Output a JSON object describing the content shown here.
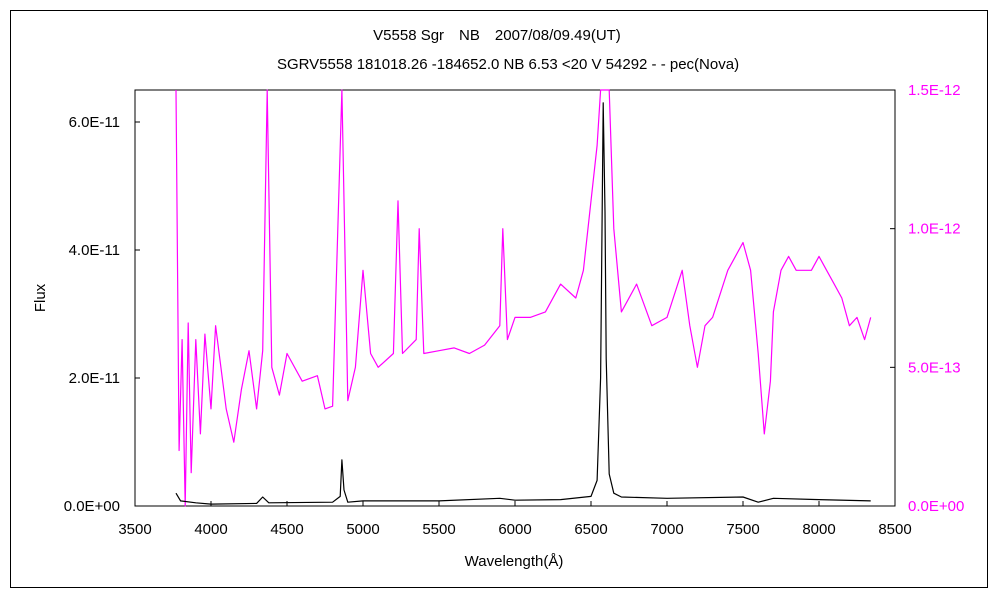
{
  "chart_data": {
    "type": "line",
    "title": "V5558 Sgr　NB　2007/08/09.49(UT)",
    "subtitle": "SGRV5558 181018.26 -184652.0 NB 6.53 <20 V 54292 - - pec(Nova)",
    "xlabel": "Wavelength(Å)",
    "ylabel": "Flux",
    "xlim": [
      3500,
      8500
    ],
    "ylim_left": [
      0,
      6.5e-11
    ],
    "ylim_right": [
      0,
      1.5e-12
    ],
    "x_ticks": [
      "3500",
      "4000",
      "4500",
      "5000",
      "5500",
      "6000",
      "6500",
      "7000",
      "7500",
      "8000",
      "8500"
    ],
    "y_ticks_left": [
      "0.0E+00",
      "2.0E-11",
      "4.0E-11",
      "6.0E-11"
    ],
    "y_ticks_right": [
      "0.0E+00",
      "5.0E-13",
      "1.0E-12",
      "1.5E-12"
    ],
    "grid": false,
    "series": [
      {
        "axis": "left",
        "color": "#000000",
        "points": [
          [
            3770,
            2e-12
          ],
          [
            3800,
            8e-13
          ],
          [
            3900,
            5e-13
          ],
          [
            4000,
            3e-13
          ],
          [
            4300,
            4e-13
          ],
          [
            4340,
            1.4e-12
          ],
          [
            4380,
            5e-13
          ],
          [
            4800,
            6e-13
          ],
          [
            4850,
            1.5e-12
          ],
          [
            4861,
            7.2e-12
          ],
          [
            4875,
            2.5e-12
          ],
          [
            4900,
            6e-13
          ],
          [
            5000,
            8e-13
          ],
          [
            5500,
            8e-13
          ],
          [
            5900,
            1.2e-12
          ],
          [
            6000,
            9e-13
          ],
          [
            6300,
            1e-12
          ],
          [
            6500,
            1.5e-12
          ],
          [
            6540,
            4e-12
          ],
          [
            6563,
            2e-11
          ],
          [
            6580,
            6.3e-11
          ],
          [
            6592,
            4.6e-11
          ],
          [
            6600,
            2.3e-11
          ],
          [
            6620,
            5e-12
          ],
          [
            6650,
            2e-12
          ],
          [
            6700,
            1.4e-12
          ],
          [
            7000,
            1.2e-12
          ],
          [
            7500,
            1.4e-12
          ],
          [
            7600,
            6e-13
          ],
          [
            7700,
            1.2e-12
          ],
          [
            8000,
            1e-12
          ],
          [
            8340,
            8e-13
          ]
        ]
      },
      {
        "axis": "right",
        "color": "#ff00ff",
        "points": [
          [
            3770,
            1.5e-12
          ],
          [
            3790,
            2e-13
          ],
          [
            3810,
            6e-13
          ],
          [
            3830,
            0
          ],
          [
            3850,
            6.6e-13
          ],
          [
            3870,
            1.2e-13
          ],
          [
            3900,
            6e-13
          ],
          [
            3930,
            2.6e-13
          ],
          [
            3960,
            6.2e-13
          ],
          [
            4000,
            3.5e-13
          ],
          [
            4030,
            6.5e-13
          ],
          [
            4100,
            3.5e-13
          ],
          [
            4150,
            2.3e-13
          ],
          [
            4200,
            4.2e-13
          ],
          [
            4250,
            5.6e-13
          ],
          [
            4300,
            3.5e-13
          ],
          [
            4340,
            5.6e-13
          ],
          [
            4370,
            1.5e-12
          ],
          [
            4400,
            5e-13
          ],
          [
            4450,
            4e-13
          ],
          [
            4500,
            5.5e-13
          ],
          [
            4600,
            4.5e-13
          ],
          [
            4700,
            4.7e-13
          ],
          [
            4750,
            3.5e-13
          ],
          [
            4800,
            3.6e-13
          ],
          [
            4861,
            1.5e-12
          ],
          [
            4900,
            3.8e-13
          ],
          [
            4950,
            5e-13
          ],
          [
            5000,
            8.5e-13
          ],
          [
            5050,
            5.5e-13
          ],
          [
            5100,
            5e-13
          ],
          [
            5200,
            5.5e-13
          ],
          [
            5230,
            1.1e-12
          ],
          [
            5260,
            5.5e-13
          ],
          [
            5350,
            6e-13
          ],
          [
            5370,
            1e-12
          ],
          [
            5400,
            5.5e-13
          ],
          [
            5500,
            5.6e-13
          ],
          [
            5600,
            5.7e-13
          ],
          [
            5700,
            5.5e-13
          ],
          [
            5800,
            5.8e-13
          ],
          [
            5900,
            6.5e-13
          ],
          [
            5920,
            1e-12
          ],
          [
            5950,
            6e-13
          ],
          [
            6000,
            6.8e-13
          ],
          [
            6100,
            6.8e-13
          ],
          [
            6200,
            7e-13
          ],
          [
            6300,
            8e-13
          ],
          [
            6400,
            7.5e-13
          ],
          [
            6450,
            8.5e-13
          ],
          [
            6500,
            1.1e-12
          ],
          [
            6540,
            1.3e-12
          ],
          [
            6563,
            1.5e-12
          ],
          [
            6620,
            1.5e-12
          ],
          [
            6650,
            1e-12
          ],
          [
            6700,
            7e-13
          ],
          [
            6800,
            8e-13
          ],
          [
            6900,
            6.5e-13
          ],
          [
            7000,
            6.8e-13
          ],
          [
            7100,
            8.5e-13
          ],
          [
            7150,
            6.5e-13
          ],
          [
            7200,
            5e-13
          ],
          [
            7250,
            6.5e-13
          ],
          [
            7300,
            6.8e-13
          ],
          [
            7400,
            8.5e-13
          ],
          [
            7450,
            9e-13
          ],
          [
            7500,
            9.5e-13
          ],
          [
            7550,
            8.5e-13
          ],
          [
            7600,
            5.5e-13
          ],
          [
            7640,
            2.6e-13
          ],
          [
            7680,
            4.5e-13
          ],
          [
            7700,
            7e-13
          ],
          [
            7750,
            8.5e-13
          ],
          [
            7800,
            9e-13
          ],
          [
            7850,
            8.5e-13
          ],
          [
            7900,
            8.5e-13
          ],
          [
            7950,
            8.5e-13
          ],
          [
            8000,
            9e-13
          ],
          [
            8050,
            8.5e-13
          ],
          [
            8100,
            8e-13
          ],
          [
            8150,
            7.5e-13
          ],
          [
            8200,
            6.5e-13
          ],
          [
            8250,
            6.8e-13
          ],
          [
            8300,
            6e-13
          ],
          [
            8340,
            6.8e-13
          ]
        ]
      }
    ]
  }
}
